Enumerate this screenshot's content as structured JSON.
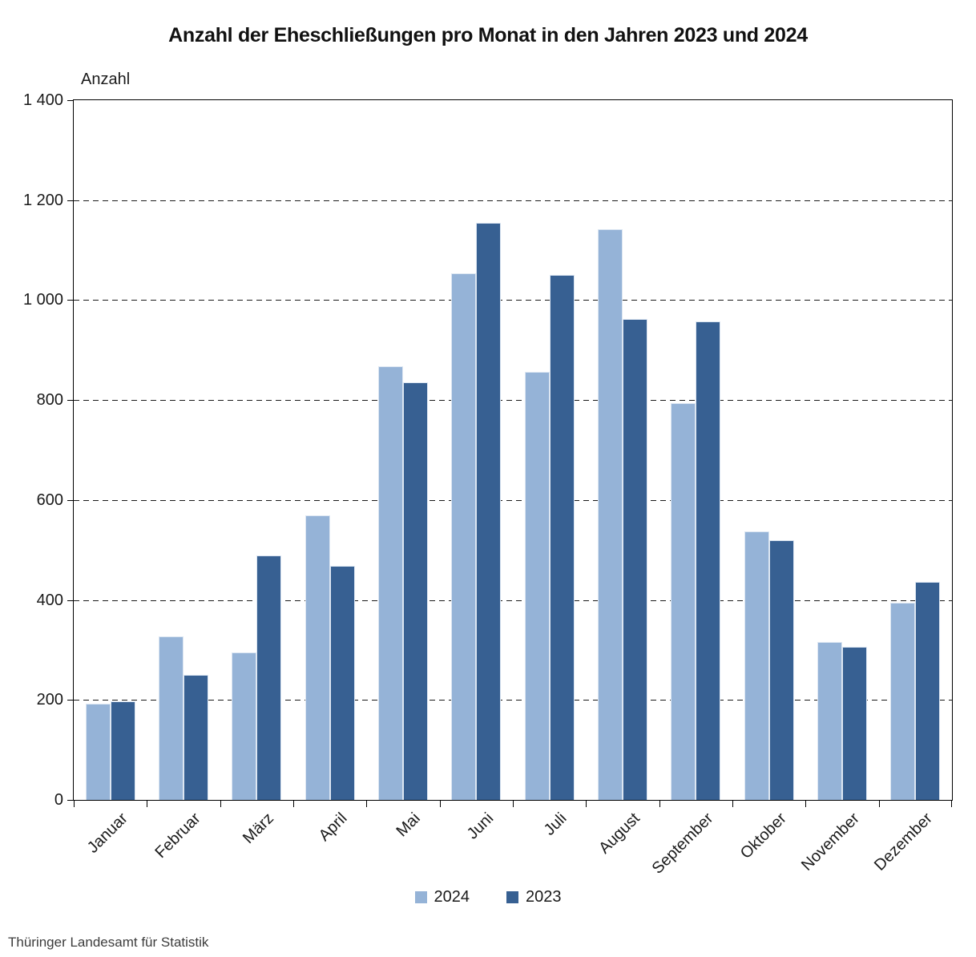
{
  "title": "Anzahl der Eheschließungen pro Monat in den Jahren 2023 und 2024",
  "footer": "Thüringer Landesamt für Statistik",
  "chart_data": {
    "type": "bar",
    "title": "Anzahl der Eheschließungen pro Monat in den Jahren 2023 und 2024",
    "xlabel": "",
    "ylabel": "Anzahl",
    "ylim": [
      0,
      1400
    ],
    "ytick_step": 200,
    "ytick_labels": [
      "0",
      "200",
      "400",
      "600",
      "800",
      "1 000",
      "1 200",
      "1 400"
    ],
    "grid": "horizontal-dashed",
    "legend_position": "bottom-center",
    "categories": [
      "Januar",
      "Februar",
      "März",
      "April",
      "Mai",
      "Juni",
      "Juli",
      "August",
      "September",
      "Oktober",
      "November",
      "Dezember"
    ],
    "series": [
      {
        "name": "2024",
        "color": "#95b3d7",
        "values": [
          192,
          327,
          295,
          570,
          868,
          1054,
          857,
          1142,
          794,
          538,
          316,
          395
        ]
      },
      {
        "name": "2023",
        "color": "#376092",
        "values": [
          198,
          250,
          489,
          468,
          835,
          1154,
          1051,
          962,
          957,
          520,
          306,
          436
        ]
      }
    ]
  }
}
